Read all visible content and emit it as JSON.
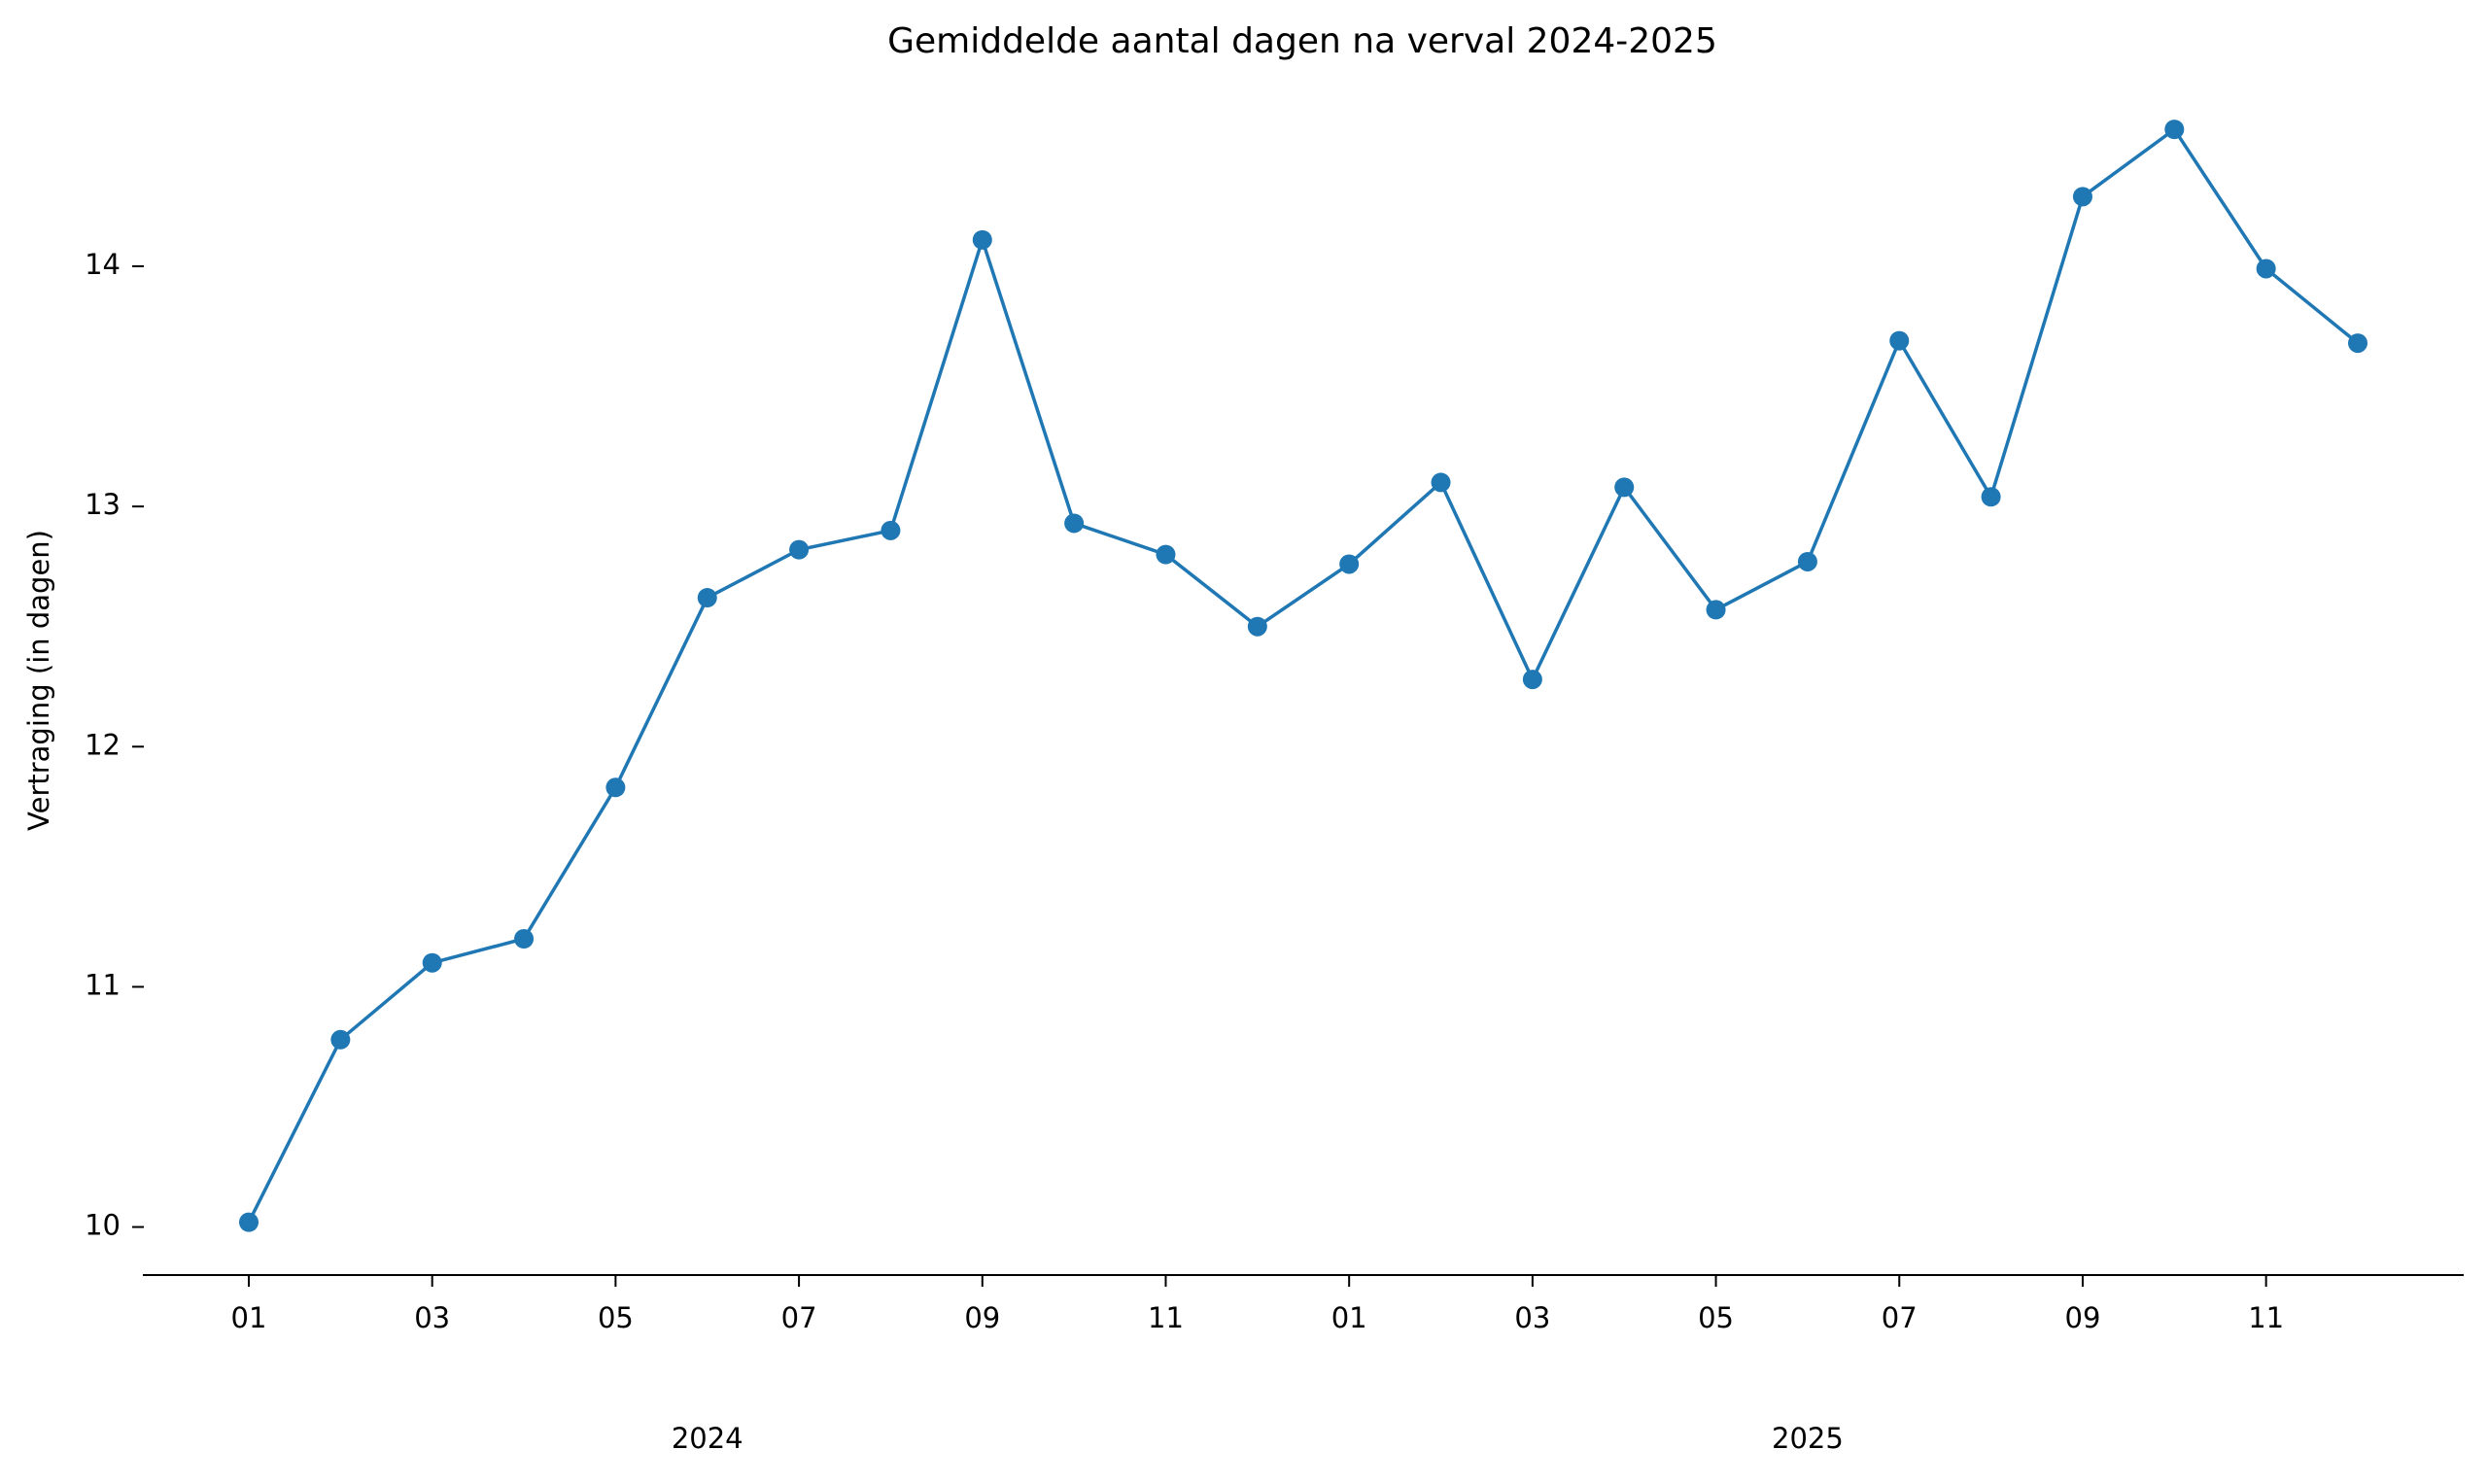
{
  "chart_data": {
    "type": "line",
    "title": "Gemiddelde aantal dagen na verval 2024-2025",
    "ylabel": "Vertraging (in dagen)",
    "categories": [
      "01",
      null,
      "03",
      null,
      "05",
      null,
      "07",
      null,
      "09",
      null,
      "11",
      null,
      "01",
      null,
      "03",
      null,
      "05",
      null,
      "07",
      null,
      "09",
      null,
      "11",
      null
    ],
    "year_labels": [
      "2024",
      "2025"
    ],
    "series": [
      {
        "name": "Vertraging",
        "color": "#1f77b4",
        "values": [
          10.02,
          10.78,
          11.1,
          11.2,
          11.83,
          12.62,
          12.82,
          12.9,
          14.11,
          12.93,
          12.8,
          12.5,
          12.76,
          13.1,
          12.28,
          13.08,
          12.57,
          12.77,
          13.69,
          13.04,
          14.29,
          14.57,
          13.99,
          13.68
        ]
      }
    ],
    "ylim": [
      9.8,
      14.7
    ],
    "yticks": [
      10,
      11,
      12,
      13,
      14
    ],
    "grid": false
  }
}
